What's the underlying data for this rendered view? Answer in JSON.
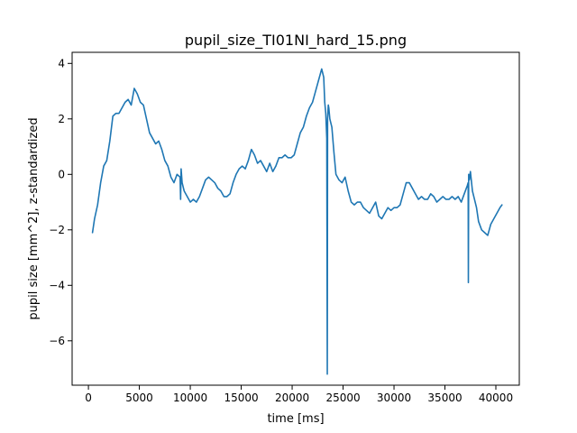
{
  "chart_data": {
    "type": "line",
    "title": "pupil_size_TI01NI_hard_15.png",
    "xlabel": "time [ms]",
    "ylabel": "pupil size [mm^2], z-standardized",
    "xlim": [
      -1600,
      42300
    ],
    "ylim": [
      -7.6,
      4.4
    ],
    "xticks": [
      0,
      5000,
      10000,
      15000,
      20000,
      25000,
      30000,
      35000,
      40000
    ],
    "yticks": [
      -6,
      -4,
      -2,
      0,
      2,
      4
    ],
    "grid": false,
    "legend": "none",
    "colors": {
      "series": "#1f77b4"
    },
    "series": [
      {
        "color": "#1f77b4",
        "x": [
          400,
          600,
          900,
          1200,
          1500,
          1800,
          2100,
          2400,
          2700,
          3000,
          3300,
          3600,
          3900,
          4200,
          4500,
          4800,
          5100,
          5400,
          5700,
          6000,
          6300,
          6600,
          6900,
          7200,
          7500,
          7800,
          8100,
          8400,
          8700,
          9000,
          9050,
          9100,
          9200,
          9400,
          9700,
          10000,
          10300,
          10600,
          10900,
          11200,
          11500,
          11800,
          12100,
          12400,
          12700,
          13000,
          13300,
          13600,
          13900,
          14200,
          14500,
          14800,
          15100,
          15400,
          15700,
          16000,
          16300,
          16600,
          16900,
          17200,
          17500,
          17800,
          18100,
          18400,
          18700,
          19000,
          19300,
          19600,
          19900,
          20200,
          20500,
          20800,
          21100,
          21400,
          21700,
          22000,
          22300,
          22600,
          22900,
          23100,
          23200,
          23300,
          23400,
          23450,
          23480,
          23550,
          23600,
          23700,
          23900,
          24100,
          24300,
          24600,
          24900,
          25200,
          25500,
          25800,
          26100,
          26400,
          26700,
          27000,
          27300,
          27600,
          27900,
          28200,
          28500,
          28800,
          29100,
          29400,
          29700,
          30000,
          30300,
          30600,
          30900,
          31200,
          31500,
          31800,
          32100,
          32400,
          32700,
          33000,
          33300,
          33600,
          33900,
          34200,
          34500,
          34800,
          35100,
          35400,
          35700,
          36000,
          36300,
          36600,
          36900,
          37200,
          37280,
          37300,
          37330,
          37400,
          37500,
          37700,
          37900,
          38100,
          38300,
          38600,
          38900,
          39200,
          39500,
          39800,
          40100,
          40400,
          40600
        ],
        "y": [
          -2.1,
          -1.6,
          -1.1,
          -0.3,
          0.3,
          0.5,
          1.2,
          2.1,
          2.2,
          2.2,
          2.4,
          2.6,
          2.7,
          2.5,
          3.1,
          2.9,
          2.6,
          2.5,
          2.0,
          1.5,
          1.3,
          1.1,
          1.2,
          0.9,
          0.5,
          0.3,
          -0.1,
          -0.3,
          0.0,
          -0.1,
          -0.9,
          0.2,
          -0.3,
          -0.6,
          -0.8,
          -1.0,
          -0.9,
          -1.0,
          -0.8,
          -0.5,
          -0.2,
          -0.1,
          -0.2,
          -0.3,
          -0.5,
          -0.6,
          -0.8,
          -0.8,
          -0.7,
          -0.3,
          0.0,
          0.2,
          0.3,
          0.2,
          0.5,
          0.9,
          0.7,
          0.4,
          0.5,
          0.3,
          0.1,
          0.4,
          0.1,
          0.3,
          0.6,
          0.6,
          0.7,
          0.6,
          0.6,
          0.7,
          1.1,
          1.5,
          1.7,
          2.1,
          2.4,
          2.6,
          3.0,
          3.4,
          3.8,
          3.5,
          2.6,
          2.2,
          1.3,
          -7.2,
          2.0,
          2.5,
          2.4,
          2.0,
          1.7,
          0.8,
          0.0,
          -0.2,
          -0.3,
          -0.1,
          -0.6,
          -1.0,
          -1.1,
          -1.0,
          -1.0,
          -1.2,
          -1.3,
          -1.4,
          -1.2,
          -1.0,
          -1.5,
          -1.6,
          -1.4,
          -1.2,
          -1.3,
          -1.2,
          -1.2,
          -1.1,
          -0.7,
          -0.3,
          -0.3,
          -0.5,
          -0.7,
          -0.9,
          -0.8,
          -0.9,
          -0.9,
          -0.7,
          -0.8,
          -1.0,
          -0.9,
          -0.8,
          -0.9,
          -0.9,
          -0.8,
          -0.9,
          -0.8,
          -1.0,
          -0.7,
          -0.4,
          -0.3,
          -3.9,
          0.0,
          -0.2,
          0.1,
          -0.6,
          -0.9,
          -1.2,
          -1.7,
          -2.0,
          -2.1,
          -2.2,
          -1.8,
          -1.6,
          -1.4,
          -1.2,
          -1.1
        ]
      }
    ]
  }
}
